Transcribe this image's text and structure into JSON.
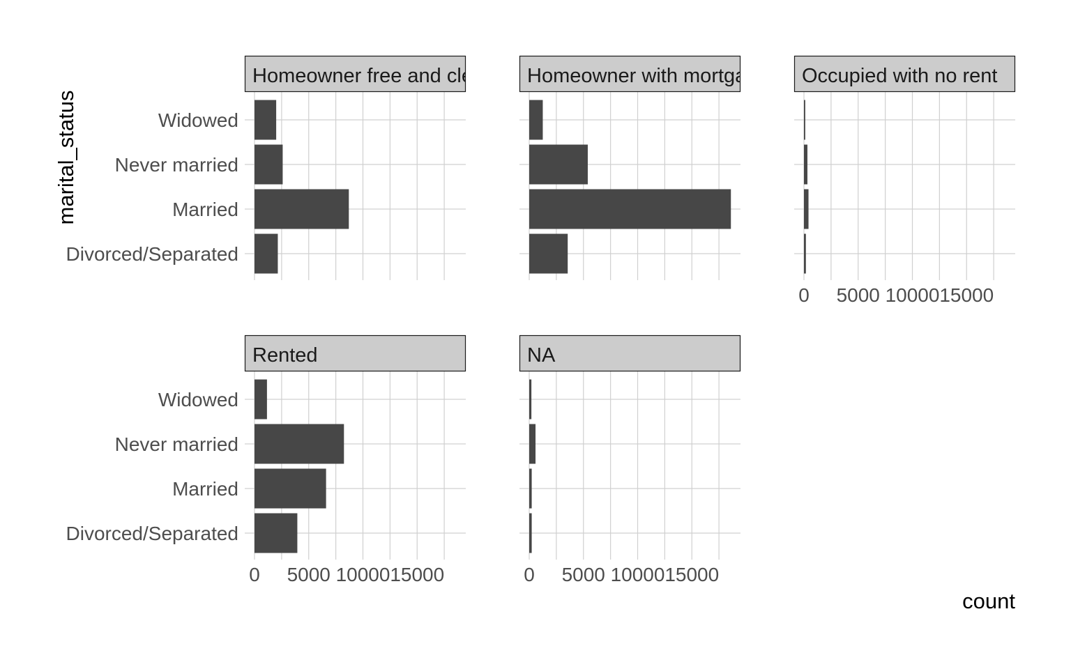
{
  "chart_data": {
    "type": "bar",
    "orientation": "horizontal",
    "facet_variable": "housing",
    "xlabel": "count",
    "ylabel": "marital_status",
    "xlim": [
      0,
      19500
    ],
    "x_ticks": [
      0,
      5000,
      10000,
      15000
    ],
    "x_tick_labels": [
      "0",
      "5000",
      "10000",
      "15000"
    ],
    "categories": [
      "Widowed",
      "Never married",
      "Married",
      "Divorced/Separated"
    ],
    "grid": true,
    "colors": {
      "bar": "#474747",
      "grid": "#d0d0d0",
      "strip_fill": "#cccccc",
      "strip_border": "#1a1a1a"
    },
    "panels": [
      {
        "label": "Homeowner free and clear",
        "values": [
          2000,
          2600,
          8700,
          2150
        ]
      },
      {
        "label": "Homeowner with mortgage",
        "values": [
          1250,
          5400,
          18600,
          3550
        ]
      },
      {
        "label": "Occupied with no rent",
        "values": [
          120,
          320,
          420,
          180
        ]
      },
      {
        "label": "Rented",
        "values": [
          1150,
          8250,
          6600,
          3950
        ]
      },
      {
        "label": "NA",
        "values": [
          200,
          580,
          230,
          230
        ]
      }
    ]
  }
}
